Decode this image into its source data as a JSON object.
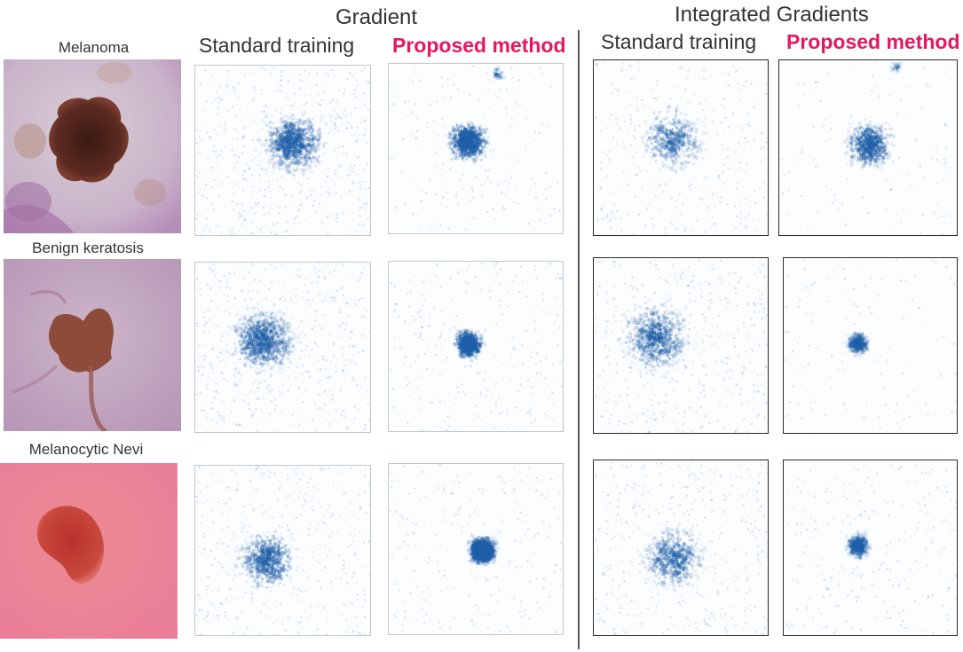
{
  "headers": {
    "gradient": "Gradient",
    "integrated_gradients": "Integrated Gradients",
    "standard_training": "Standard training",
    "proposed_method": "Proposed method"
  },
  "rows": [
    {
      "label": "Melanoma"
    },
    {
      "label": "Benign keratosis"
    },
    {
      "label": "Melanocytic Nevi"
    }
  ],
  "colors": {
    "proposed_accent": "#e8175d",
    "saliency": "#1f5fa8",
    "text": "#333333"
  }
}
